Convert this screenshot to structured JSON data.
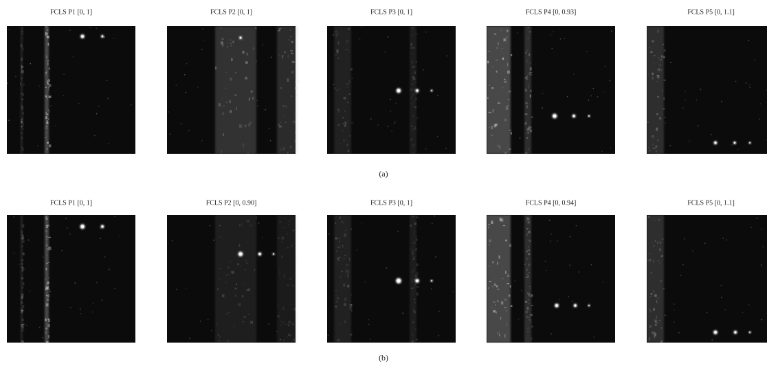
{
  "figure": {
    "rows": [
      {
        "panels": [
          {
            "title": "FCLS P1 [0, 1]"
          },
          {
            "title": "FCLS P2 [0, 1]"
          },
          {
            "title": "FCLS P3 [0, 1]"
          },
          {
            "title": "FCLS P4 [0, 0.93]"
          },
          {
            "title": "FCLS P5 [0, 1.1]"
          }
        ],
        "caption": "(a)"
      },
      {
        "panels": [
          {
            "title": "FCLS P1 [0, 1]"
          },
          {
            "title": "FCLS P2 [0, 0.90]"
          },
          {
            "title": "FCLS P3 [0, 1]"
          },
          {
            "title": "FCLS P4 [0, 0.94]"
          },
          {
            "title": "FCLS P5 [0, 1.1]"
          }
        ],
        "caption": "(b)"
      }
    ]
  }
}
